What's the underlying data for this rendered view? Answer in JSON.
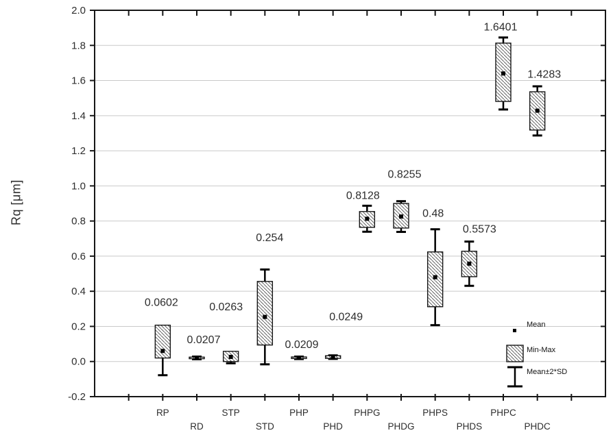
{
  "chart_data": {
    "type": "box",
    "title": "",
    "xlabel": "",
    "ylabel": "Rq [μm]",
    "ylim": [
      -0.2,
      2.0
    ],
    "ytick_labels": [
      "2.0",
      "1.8",
      "1.6",
      "1.4",
      "1.2",
      "1.0",
      "0.8",
      "0.6",
      "0.4",
      "0.2",
      "0.0",
      "-0.2"
    ],
    "grid": "horizontal light-gray lines at each y tick inside frame",
    "legend": {
      "position": "bottom-right inside plot",
      "items": [
        {
          "label": "Mean",
          "marker": "small-black-square"
        },
        {
          "label": "Min-Max",
          "marker": "hatched-box"
        },
        {
          "label": "Mean±2*SD",
          "marker": "whisker-bar"
        }
      ]
    },
    "categories": [
      "RP",
      "RD",
      "STP",
      "STD",
      "PHP",
      "PHD",
      "PHPG",
      "PHDG",
      "PHPS",
      "PHDS",
      "PHPC",
      "PHDC"
    ],
    "series": [
      {
        "name": "RP",
        "mean": 0.0602,
        "min": 0.02,
        "max": 0.207,
        "mean2sd_low": -0.078,
        "mean2sd_high": 0.198,
        "label": "0.0602",
        "label_dx": -2,
        "label_y": 0.339
      },
      {
        "name": "RD",
        "mean": 0.0207,
        "min": 0.016,
        "max": 0.025,
        "mean2sd_low": 0.013,
        "mean2sd_high": 0.028,
        "label": "0.0207",
        "label_dx": 10,
        "label_y": 0.125
      },
      {
        "name": "STP",
        "mean": 0.0263,
        "min": 0.0,
        "max": 0.058,
        "mean2sd_low": -0.01,
        "mean2sd_high": 0.053,
        "label": "0.0263",
        "label_dx": -7,
        "label_y": 0.312
      },
      {
        "name": "STD",
        "mean": 0.254,
        "min": 0.094,
        "max": 0.456,
        "mean2sd_low": -0.016,
        "mean2sd_high": 0.524,
        "label": "0.254",
        "label_dx": 7,
        "label_y": 0.706
      },
      {
        "name": "PHP",
        "mean": 0.0209,
        "min": 0.017,
        "max": 0.026,
        "mean2sd_low": 0.014,
        "mean2sd_high": 0.028,
        "label": "0.0209",
        "label_dx": 4,
        "label_y": 0.098
      },
      {
        "name": "PHD",
        "mean": 0.0249,
        "min": 0.018,
        "max": 0.033,
        "mean2sd_low": 0.015,
        "mean2sd_high": 0.035,
        "label": "0.0249",
        "label_dx": 19,
        "label_y": 0.257
      },
      {
        "name": "PHPG",
        "mean": 0.8128,
        "min": 0.764,
        "max": 0.854,
        "mean2sd_low": 0.739,
        "mean2sd_high": 0.887,
        "label": "0.8128",
        "label_dx": -6,
        "label_y": 0.947
      },
      {
        "name": "PHDG",
        "mean": 0.8255,
        "min": 0.76,
        "max": 0.9,
        "mean2sd_low": 0.738,
        "mean2sd_high": 0.913,
        "label": "0.8255",
        "label_dx": 5,
        "label_y": 1.068
      },
      {
        "name": "PHPS",
        "mean": 0.48,
        "min": 0.312,
        "max": 0.624,
        "mean2sd_low": 0.207,
        "mean2sd_high": 0.753,
        "label": "0.48",
        "label_dx": -3,
        "label_y": 0.846
      },
      {
        "name": "PHDS",
        "mean": 0.5573,
        "min": 0.483,
        "max": 0.628,
        "mean2sd_low": 0.431,
        "mean2sd_high": 0.683,
        "label": "0.5573",
        "label_dx": 15,
        "label_y": 0.756
      },
      {
        "name": "PHPC",
        "mean": 1.6401,
        "min": 1.481,
        "max": 1.813,
        "mean2sd_low": 1.435,
        "mean2sd_high": 1.845,
        "label": "1.6401",
        "label_dx": -4,
        "label_y": 1.906
      },
      {
        "name": "PHDC",
        "mean": 1.4283,
        "min": 1.318,
        "max": 1.536,
        "mean2sd_low": 1.287,
        "mean2sd_high": 1.567,
        "label": "1.4283",
        "label_dx": 10,
        "label_y": 1.637
      }
    ],
    "colors": {
      "frame": "#161616",
      "grid": "#c9c9c9",
      "hatch": "#4f4f4f",
      "text": "#2d2d2d",
      "marker": "#000000"
    }
  }
}
